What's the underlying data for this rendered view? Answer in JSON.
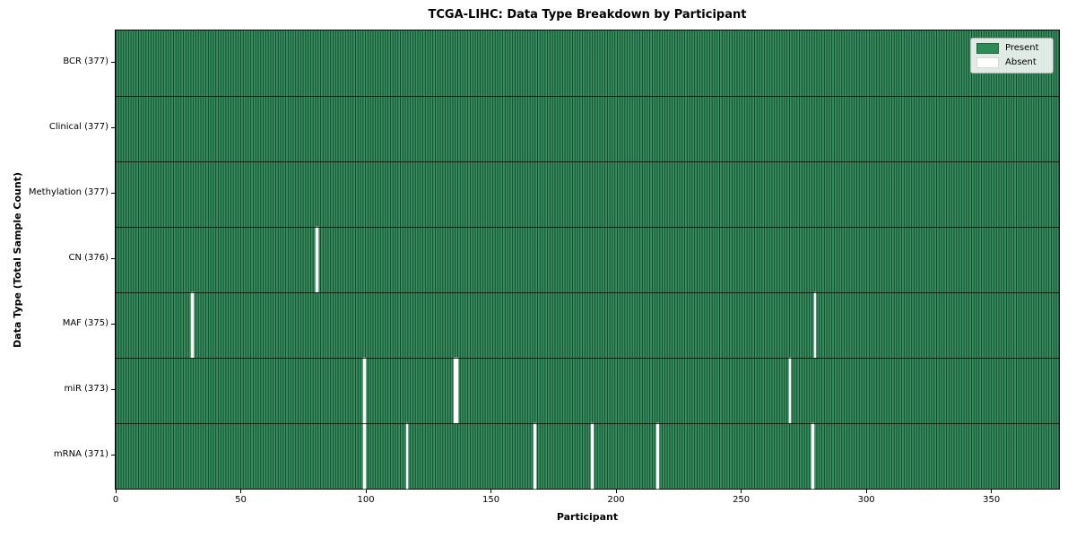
{
  "title": "TCGA-LIHC: Data Type Breakdown by Participant",
  "chart_data": {
    "type": "heatmap",
    "title": "TCGA-LIHC: Data Type Breakdown by Participant",
    "xlabel": "Participant",
    "ylabel": "Data Type (Total Sample Count)",
    "x_range": [
      0,
      377
    ],
    "n_participants": 377,
    "x_ticks": [
      0,
      50,
      100,
      150,
      200,
      250,
      300,
      350
    ],
    "grid": false,
    "legend_position": "upper right",
    "legend": {
      "present": "Present",
      "absent": "Absent"
    },
    "colors": {
      "present_fill": "#2e8b57",
      "present_stripe_light": "#36915f",
      "cell_edge": "#16432e",
      "absent_fill": "#fcfcfc",
      "legend_bg": "#e8eee8"
    },
    "rows": [
      {
        "name": "BCR",
        "label": "BCR (377)",
        "total": 377,
        "absent_participants": []
      },
      {
        "name": "Clinical",
        "label": "Clinical (377)",
        "total": 377,
        "absent_participants": []
      },
      {
        "name": "Methylation",
        "label": "Methylation (377)",
        "total": 377,
        "absent_participants": []
      },
      {
        "name": "CN",
        "label": "CN (376)",
        "total": 376,
        "absent_participants": [
          80
        ]
      },
      {
        "name": "MAF",
        "label": "MAF (375)",
        "total": 375,
        "absent_participants": [
          30,
          279
        ]
      },
      {
        "name": "miR",
        "label": "miR (373)",
        "total": 373,
        "absent_participants": [
          99,
          135,
          136,
          269
        ]
      },
      {
        "name": "mRNA",
        "label": "mRNA (371)",
        "total": 371,
        "absent_participants": [
          99,
          116,
          167,
          190,
          216,
          278
        ]
      }
    ]
  }
}
